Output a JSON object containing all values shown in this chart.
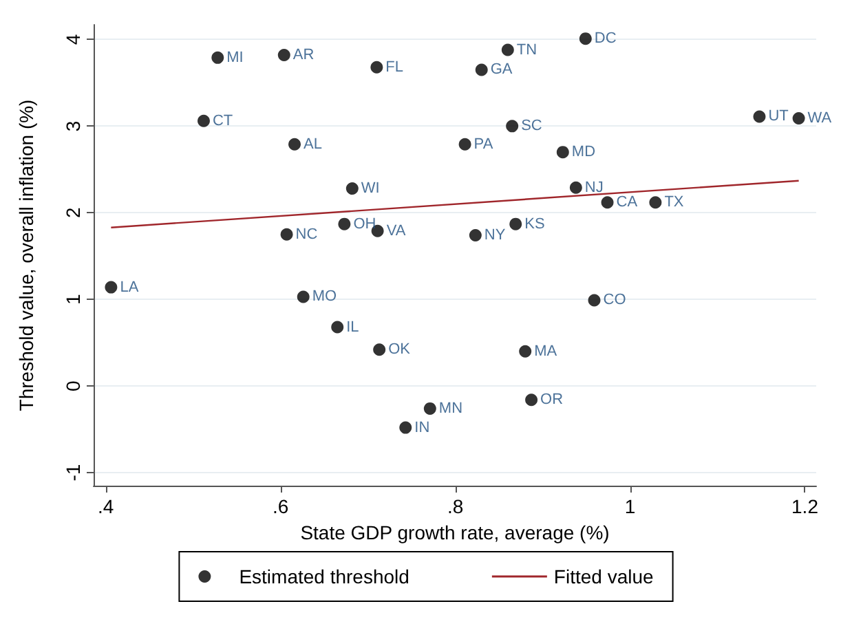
{
  "chart_data": {
    "type": "scatter",
    "xlabel": "State GDP growth rate, average (%)",
    "ylabel": "Threshold value, overall inflation (%)",
    "xlim": [
      0.386,
      1.213
    ],
    "ylim": [
      -1.15,
      4.17
    ],
    "xticks": [
      {
        "value": 0.4,
        "label": ".4"
      },
      {
        "value": 0.6,
        "label": ".6"
      },
      {
        "value": 0.8,
        "label": ".8"
      },
      1,
      1.2
    ],
    "yticks": [
      -1,
      0,
      1,
      2,
      3,
      4
    ],
    "grid": "y",
    "legend": "bottom",
    "marker": "circle",
    "series": [
      {
        "name": "Estimated threshold",
        "color": "#000000",
        "x": [
          0.528,
          0.604,
          0.71,
          0.512,
          0.616,
          0.682,
          0.607,
          0.673,
          0.711,
          0.949,
          0.86,
          0.83,
          1.148,
          1.193,
          0.865,
          0.811,
          0.923,
          0.938,
          0.974,
          1.029,
          0.869,
          0.823,
          0.406,
          0.626,
          0.665,
          0.713,
          0.743,
          0.959,
          0.88,
          0.887,
          0.771
        ],
        "values": [
          3.79,
          3.82,
          3.68,
          3.06,
          2.79,
          2.28,
          1.75,
          1.87,
          1.79,
          4.01,
          3.88,
          3.65,
          3.11,
          3.09,
          3.0,
          2.79,
          2.7,
          2.29,
          2.12,
          2.12,
          1.87,
          1.74,
          1.14,
          1.03,
          0.68,
          0.42,
          -0.48,
          0.99,
          0.4,
          -0.16,
          -0.26
        ],
        "value_labels": [
          "MI",
          "AR",
          "FL",
          "CT",
          "AL",
          "WI",
          "NC",
          "OH",
          "VA",
          "DC",
          "TN",
          "GA",
          "UT",
          "WA",
          "SC",
          "PA",
          "MD",
          "NJ",
          "CA",
          "TX",
          "KS",
          "NY",
          "LA",
          "MO",
          "IL",
          "OK",
          "IN",
          "CO",
          "MA",
          "OR",
          "MN"
        ]
      },
      {
        "name": "Fitted value",
        "type": "line",
        "color": "#a0262b",
        "marker": "none",
        "line_style": "solid",
        "x": [
          0.406,
          1.193
        ],
        "values": [
          1.83,
          2.37
        ]
      }
    ]
  }
}
